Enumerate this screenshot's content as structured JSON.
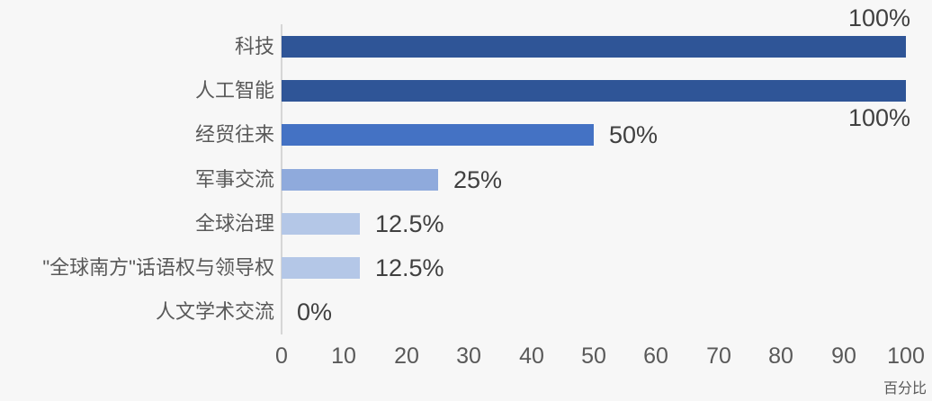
{
  "chart_data": {
    "type": "bar",
    "orientation": "horizontal",
    "title": "",
    "xlabel": "百分比",
    "ylabel": "",
    "xlim": [
      0,
      100
    ],
    "x_ticks": [
      0,
      10,
      20,
      30,
      40,
      50,
      60,
      70,
      80,
      90,
      100
    ],
    "grid": false,
    "legend": false,
    "background_color": "#f7f7f7",
    "axis_line_color": "#d6d6d6",
    "categories": [
      "科技",
      "人工智能",
      "经贸往来",
      "军事交流",
      "全球治理",
      "\"全球南方\"话语权与领导权",
      "人文学术交流"
    ],
    "values": [
      100,
      100,
      50,
      25,
      12.5,
      12.5,
      0
    ],
    "value_labels": [
      "100%",
      "100%",
      "50%",
      "25%",
      "12.5%",
      "12.5%",
      "0%"
    ],
    "bar_colors": [
      "#2f5597",
      "#2f5597",
      "#4472c4",
      "#8faadc",
      "#b4c7e7",
      "#b4c7e7",
      "#b4c7e7"
    ],
    "value_label_positions": [
      "above_end",
      "below_end",
      "right",
      "right",
      "right",
      "right",
      "right"
    ],
    "text_colors": {
      "category": "#595959",
      "value": "#404040",
      "tick": "#595959"
    }
  }
}
